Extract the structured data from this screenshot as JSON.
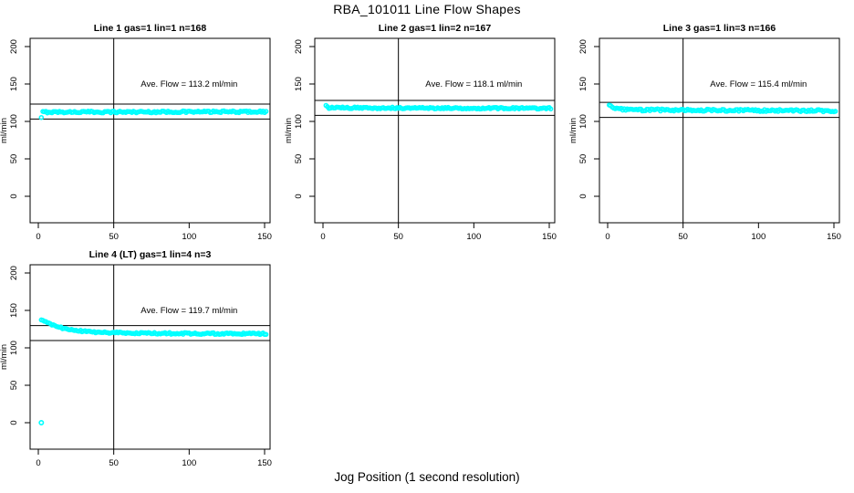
{
  "page": {
    "title": "RBA_101011  Line Flow Shapes",
    "xlabel": "Jog Position (1 second resolution)",
    "background": "#ffffff"
  },
  "colors": {
    "points": "#00ffff",
    "axis": "#000000",
    "text": "#000000"
  },
  "chart_data": [
    {
      "type": "scatter",
      "title": "Line 1 gas=1 lin=1 n=168",
      "n": 168,
      "annotation": "Ave. Flow =  113.2  ml/min",
      "ave_flow": 113.2,
      "units": "ml/min",
      "ylabel": "ml/min",
      "xticks": [
        0,
        50,
        100,
        150
      ],
      "yticks": [
        0,
        50,
        100,
        150,
        200
      ],
      "xlim": [
        -5,
        157
      ],
      "ylim": [
        -40,
        212
      ],
      "vline_x": 50,
      "hlines": [
        123.2,
        103.2
      ],
      "band": {
        "x_start": 2,
        "x_end": 151,
        "jitter": 1.2,
        "control": [
          [
            2,
            104.5
          ],
          [
            3,
            112.5
          ],
          [
            151,
            113
          ]
        ]
      },
      "extra_points": []
    },
    {
      "type": "scatter",
      "title": "Line 2 gas=1 lin=2 n=167",
      "n": 167,
      "annotation": "Ave. Flow =  118.1  ml/min",
      "ave_flow": 118.1,
      "units": "ml/min",
      "ylabel": "ml/min",
      "xticks": [
        0,
        50,
        100,
        150
      ],
      "yticks": [
        0,
        50,
        100,
        150,
        200
      ],
      "xlim": [
        -5,
        157
      ],
      "ylim": [
        -40,
        212
      ],
      "vline_x": 50,
      "hlines": [
        128.1,
        108.1
      ],
      "band": {
        "x_start": 2,
        "x_end": 151,
        "jitter": 1.1,
        "control": [
          [
            2,
            120.5
          ],
          [
            4,
            118.2
          ],
          [
            151,
            117.5
          ]
        ]
      },
      "extra_points": []
    },
    {
      "type": "scatter",
      "title": "Line 3 gas=1 lin=3 n=166",
      "n": 166,
      "annotation": "Ave. Flow =  115.4  ml/min",
      "ave_flow": 115.4,
      "units": "ml/min",
      "ylabel": "ml/min",
      "xticks": [
        0,
        50,
        100,
        150
      ],
      "yticks": [
        0,
        50,
        100,
        150,
        200
      ],
      "xlim": [
        -5,
        157
      ],
      "ylim": [
        -40,
        212
      ],
      "vline_x": 50,
      "hlines": [
        125.4,
        105.4
      ],
      "band": {
        "x_start": 1,
        "x_end": 151,
        "jitter": 1.4,
        "control": [
          [
            1,
            122
          ],
          [
            4,
            118
          ],
          [
            12,
            115.5
          ],
          [
            151,
            114.2
          ]
        ]
      },
      "extra_points": []
    },
    {
      "type": "scatter",
      "title": "Line 4 (LT) gas=1 lin=4 n=3",
      "n": 3,
      "annotation": "Ave. Flow =  119.7  ml/min",
      "ave_flow": 119.7,
      "units": "ml/min",
      "ylabel": "ml/min",
      "xticks": [
        0,
        50,
        100,
        150
      ],
      "yticks": [
        0,
        50,
        100,
        150,
        200
      ],
      "xlim": [
        -5,
        157
      ],
      "ylim": [
        -40,
        212
      ],
      "vline_x": 50,
      "hlines": [
        129.7,
        109.7
      ],
      "band": {
        "x_start": 2,
        "x_end": 151,
        "jitter": 1.1,
        "control": [
          [
            2,
            137.5
          ],
          [
            6,
            133
          ],
          [
            12,
            128.5
          ],
          [
            20,
            124.5
          ],
          [
            30,
            122
          ],
          [
            45,
            120.5
          ],
          [
            70,
            119.5
          ],
          [
            151,
            118.7
          ]
        ]
      },
      "extra_points": [
        [
          2,
          0
        ]
      ]
    }
  ]
}
